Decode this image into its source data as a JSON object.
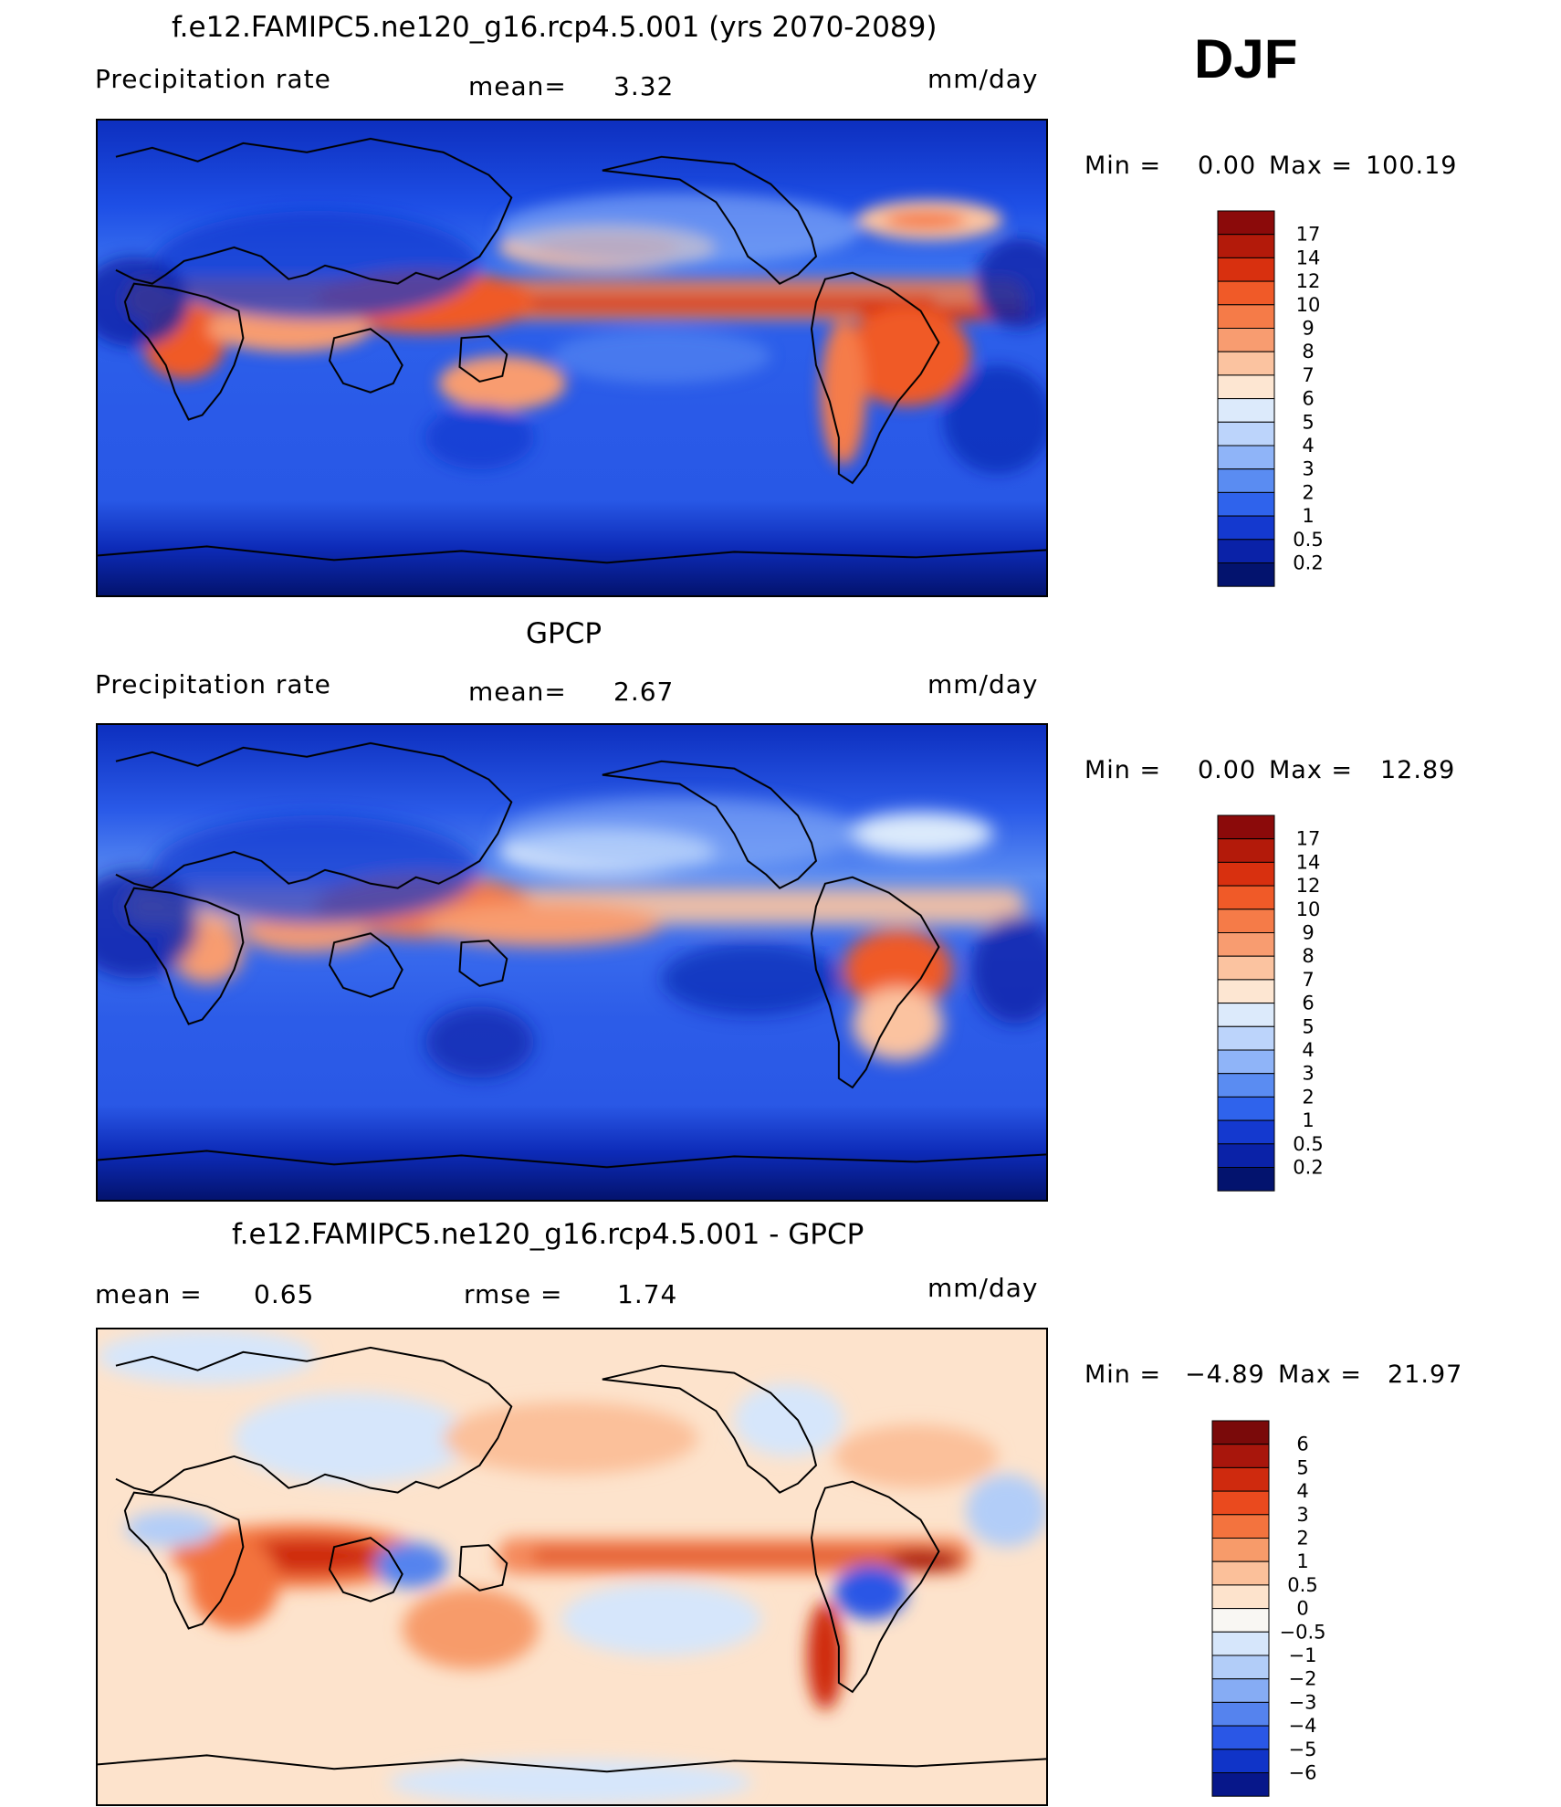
{
  "season": "DJF",
  "panels": [
    {
      "id": "model",
      "title": "f.e12.FAMIPC5.ne120_g16.rcp4.5.001 (yrs 2070-2089)",
      "left_label": "Precipitation  rate",
      "stat_label": "mean=",
      "stat_value": "3.32",
      "units": "mm/day",
      "min_label": "Min  =",
      "min_value": "0.00",
      "max_label": "Max  =",
      "max_value": "100.19",
      "colorbar": {
        "labels": [
          "17",
          "14",
          "12",
          "10",
          "9",
          "8",
          "7",
          "6",
          "5",
          "4",
          "3",
          "2",
          "1",
          "0.5",
          "0.2"
        ],
        "colors": [
          "#8b0a0a",
          "#b31a0a",
          "#d8300f",
          "#f05a28",
          "#f57b48",
          "#f89c70",
          "#fbc3a0",
          "#fde6d2",
          "#dceafb",
          "#bcd4fb",
          "#8fb4f8",
          "#5a8cf2",
          "#2f63ec",
          "#1439cf",
          "#0a22a8",
          "#03136e"
        ]
      }
    },
    {
      "id": "obs",
      "title": "GPCP",
      "left_label": "Precipitation  rate",
      "stat_label": "mean=",
      "stat_value": "2.67",
      "units": "mm/day",
      "min_label": "Min  =",
      "min_value": "0.00",
      "max_label": "Max  =",
      "max_value": "12.89",
      "colorbar": {
        "labels": [
          "17",
          "14",
          "12",
          "10",
          "9",
          "8",
          "7",
          "6",
          "5",
          "4",
          "3",
          "2",
          "1",
          "0.5",
          "0.2"
        ],
        "colors": [
          "#8b0a0a",
          "#b31a0a",
          "#d8300f",
          "#f05a28",
          "#f57b48",
          "#f89c70",
          "#fbc3a0",
          "#fde6d2",
          "#dceafb",
          "#bcd4fb",
          "#8fb4f8",
          "#5a8cf2",
          "#2f63ec",
          "#1439cf",
          "#0a22a8",
          "#03136e"
        ]
      }
    },
    {
      "id": "diff",
      "title": "f.e12.FAMIPC5.ne120_g16.rcp4.5.001 - GPCP",
      "left_label": "mean  =",
      "left_value": "0.65",
      "stat_label": "rmse  =",
      "stat_value": "1.74",
      "units": "mm/day",
      "min_label": "Min  =",
      "min_value": "−4.89",
      "max_label": "Max  =",
      "max_value": "21.97",
      "colorbar": {
        "labels": [
          "6",
          "5",
          "4",
          "3",
          "2",
          "1",
          "0.5",
          "0",
          "−0.5",
          "−1",
          "−2",
          "−3",
          "−4",
          "−5",
          "−6"
        ],
        "colors": [
          "#7a0a0a",
          "#a8160c",
          "#cf2a0e",
          "#ea4a1e",
          "#f3733e",
          "#f79b6a",
          "#fbc09a",
          "#fde3cc",
          "#f9f7f3",
          "#d6e6fb",
          "#b2cdf8",
          "#86acf4",
          "#5583ee",
          "#2a57e6",
          "#1034c8",
          "#07178a"
        ]
      }
    }
  ]
}
